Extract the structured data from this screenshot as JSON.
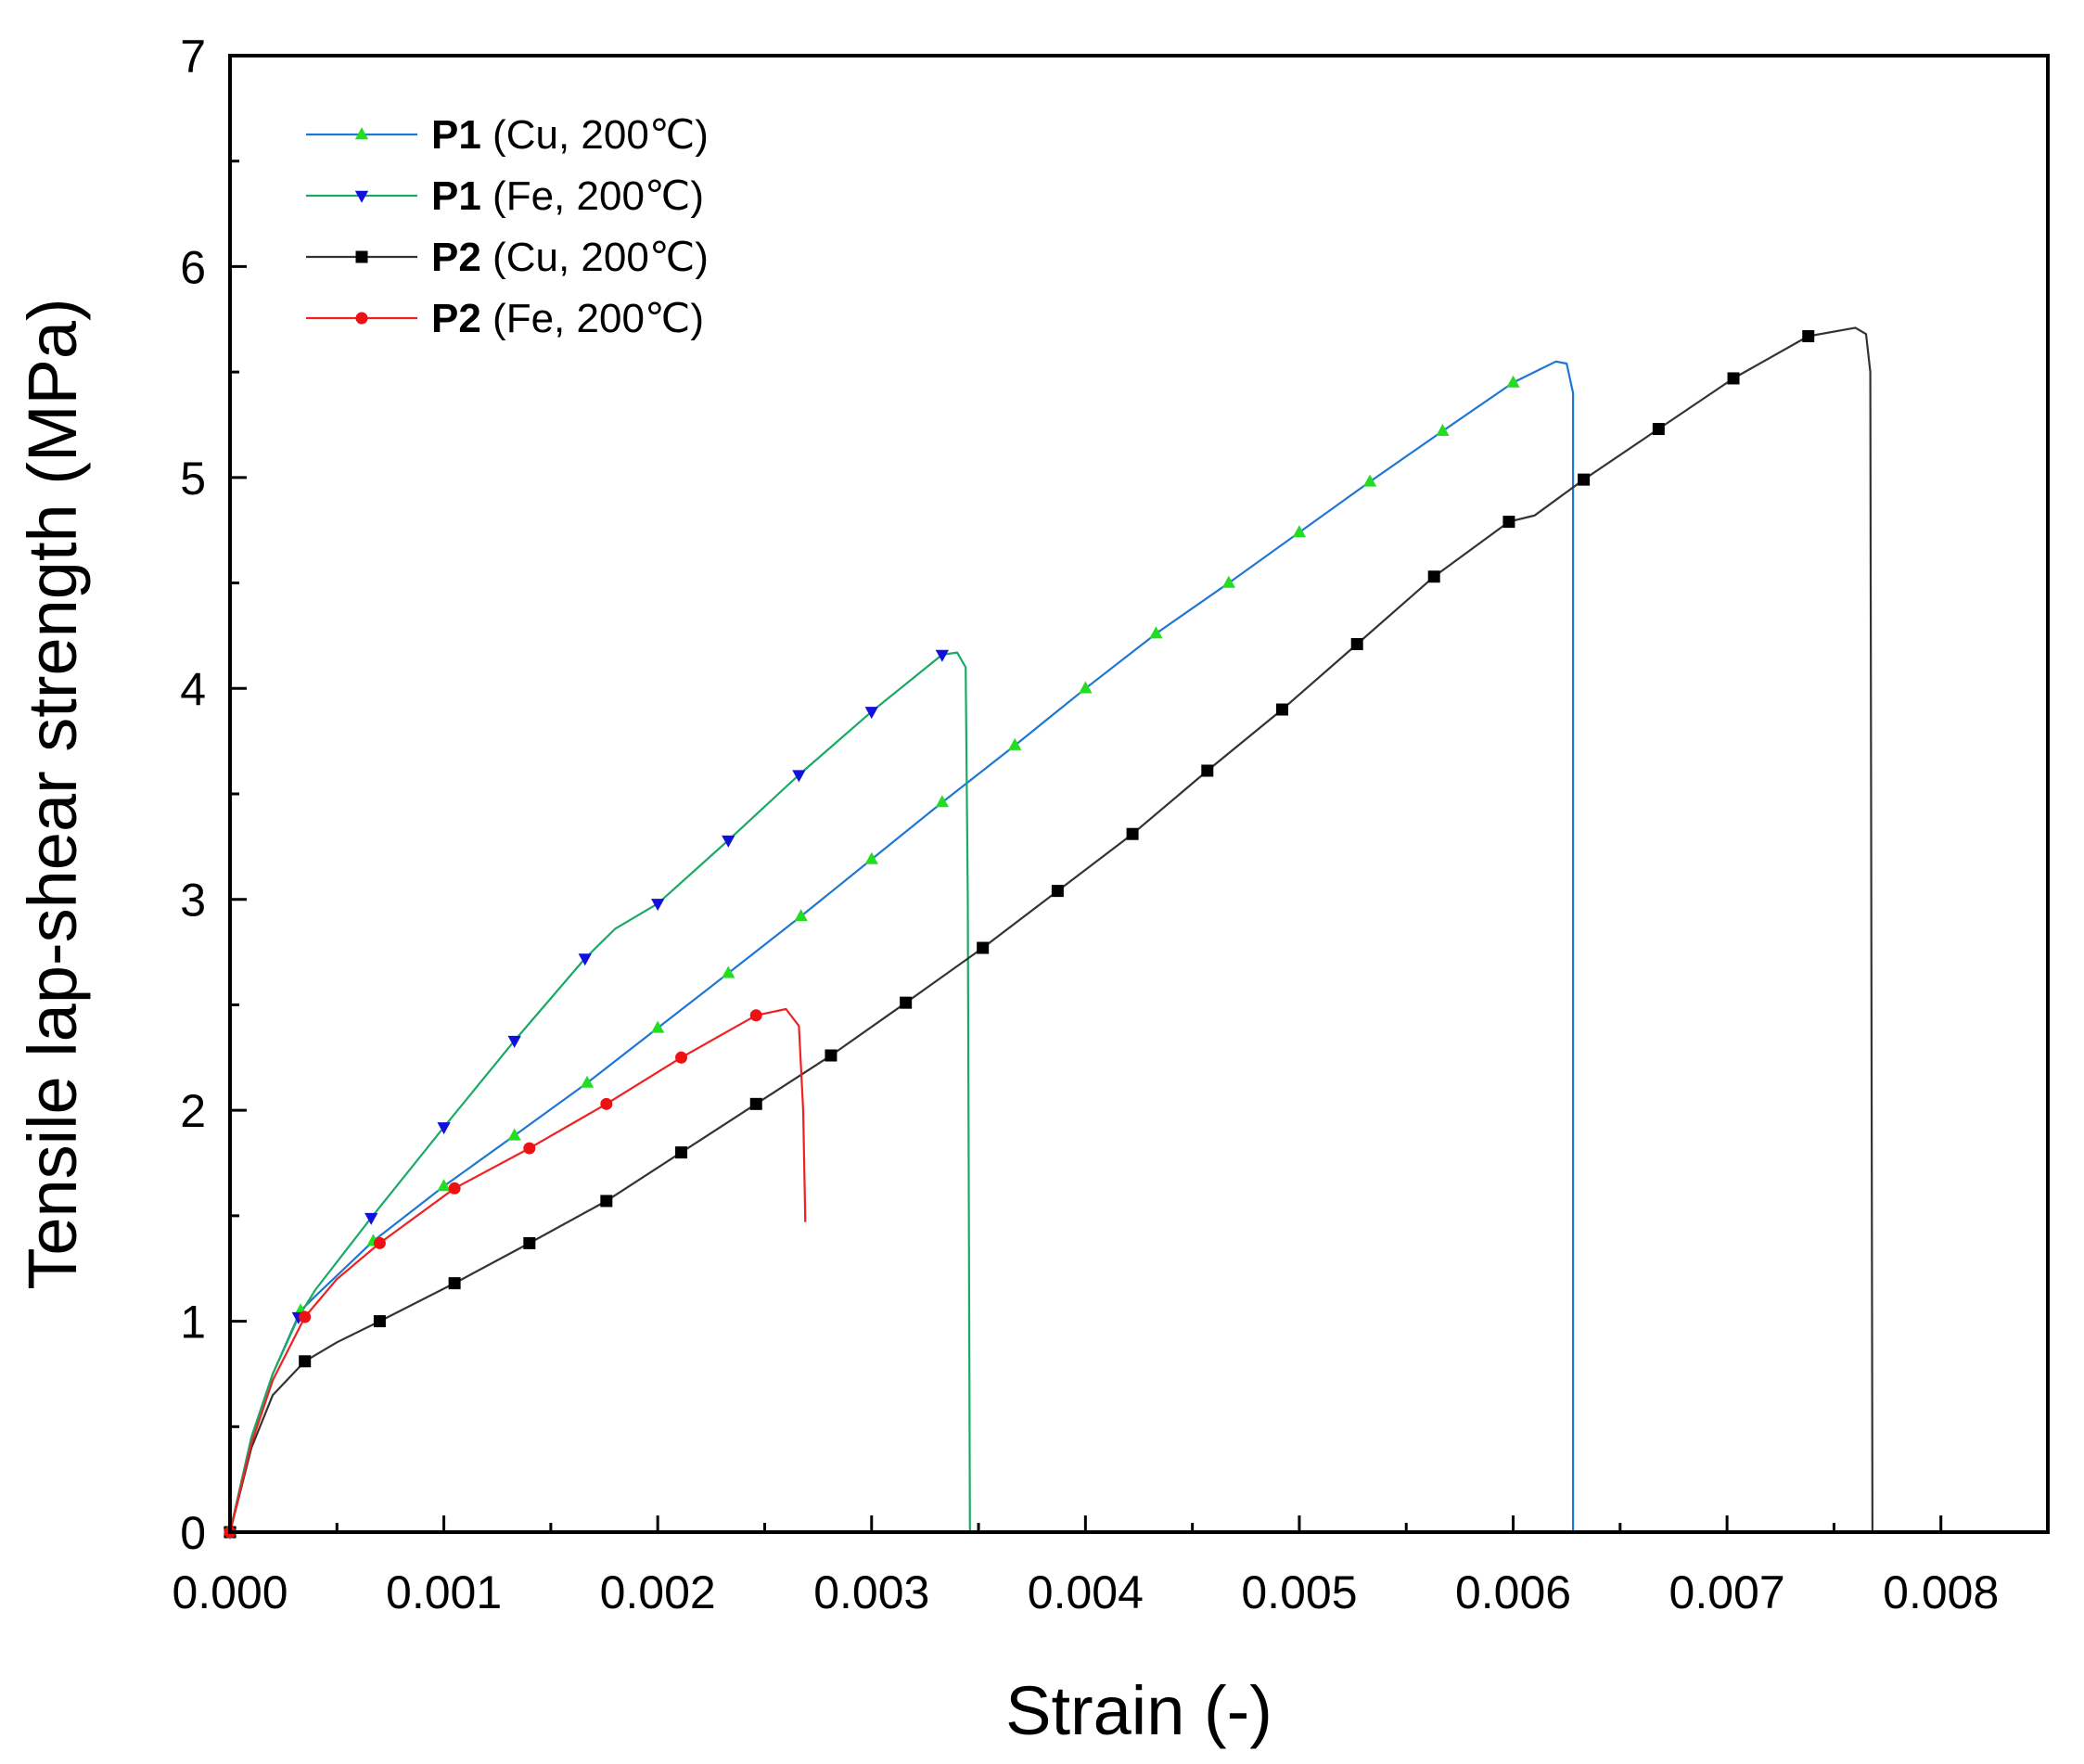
{
  "chart_data": {
    "type": "line",
    "xlabel": "Strain (-)",
    "ylabel": "Tensile lap-shear strength (MPa)",
    "xlim": [
      0,
      0.0085
    ],
    "ylim": [
      0,
      7
    ],
    "xticks": [
      "0.000",
      "0.001",
      "0.002",
      "0.003",
      "0.004",
      "0.005",
      "0.006",
      "0.007",
      "0.008"
    ],
    "yticks": [
      "0",
      "1",
      "2",
      "3",
      "4",
      "5",
      "6",
      "7"
    ],
    "grid": false,
    "legend_position": "top-left",
    "series": [
      {
        "name": "P1 (Cu, 200℃)",
        "label_bold": "P1",
        "label_rest": " (Cu, 200℃)",
        "color": "#1f77d4",
        "marker": "triangle-up",
        "marker_color": "#22dd22",
        "curve": [
          [
            0,
            0
          ],
          [
            0.0001,
            0.45
          ],
          [
            0.0002,
            0.75
          ],
          [
            0.00033,
            1.05
          ],
          [
            0.0004,
            1.12
          ],
          [
            0.00067,
            1.38
          ],
          [
            0.001,
            1.64
          ],
          [
            0.00133,
            1.88
          ],
          [
            0.00167,
            2.13
          ],
          [
            0.002,
            2.39
          ],
          [
            0.00233,
            2.65
          ],
          [
            0.00267,
            2.92
          ],
          [
            0.003,
            3.19
          ],
          [
            0.00333,
            3.46
          ],
          [
            0.00367,
            3.73
          ],
          [
            0.004,
            4.0
          ],
          [
            0.00433,
            4.26
          ],
          [
            0.00467,
            4.5
          ],
          [
            0.005,
            4.74
          ],
          [
            0.00533,
            4.98
          ],
          [
            0.00567,
            5.22
          ],
          [
            0.006,
            5.45
          ],
          [
            0.0062,
            5.55
          ],
          [
            0.00625,
            5.54
          ],
          [
            0.00628,
            5.4
          ],
          [
            0.00628,
            0
          ]
        ],
        "markers": [
          [
            0,
            0
          ],
          [
            0.00033,
            1.05
          ],
          [
            0.00067,
            1.38
          ],
          [
            0.001,
            1.64
          ],
          [
            0.00133,
            1.88
          ],
          [
            0.00167,
            2.13
          ],
          [
            0.002,
            2.39
          ],
          [
            0.00233,
            2.65
          ],
          [
            0.00267,
            2.92
          ],
          [
            0.003,
            3.19
          ],
          [
            0.00333,
            3.46
          ],
          [
            0.00367,
            3.73
          ],
          [
            0.004,
            4.0
          ],
          [
            0.00433,
            4.26
          ],
          [
            0.00467,
            4.5
          ],
          [
            0.005,
            4.74
          ],
          [
            0.00533,
            4.98
          ],
          [
            0.00567,
            5.22
          ],
          [
            0.006,
            5.45
          ]
        ]
      },
      {
        "name": "P1 (Fe, 200℃)",
        "label_bold": "P1",
        "label_rest": " (Fe, 200℃)",
        "color": "#1aaa66",
        "marker": "triangle-down",
        "marker_color": "#1111dd",
        "curve": [
          [
            0,
            0
          ],
          [
            0.0001,
            0.45
          ],
          [
            0.0002,
            0.75
          ],
          [
            0.00032,
            1.02
          ],
          [
            0.0004,
            1.15
          ],
          [
            0.00066,
            1.49
          ],
          [
            0.001,
            1.92
          ],
          [
            0.00133,
            2.33
          ],
          [
            0.00166,
            2.72
          ],
          [
            0.0018,
            2.86
          ],
          [
            0.002,
            2.98
          ],
          [
            0.00233,
            3.28
          ],
          [
            0.00266,
            3.59
          ],
          [
            0.003,
            3.89
          ],
          [
            0.00333,
            4.16
          ],
          [
            0.0034,
            4.17
          ],
          [
            0.00344,
            4.1
          ],
          [
            0.00345,
            3.0
          ],
          [
            0.00346,
            0
          ]
        ],
        "markers": [
          [
            0,
            0
          ],
          [
            0.00032,
            1.02
          ],
          [
            0.00066,
            1.49
          ],
          [
            0.001,
            1.92
          ],
          [
            0.00133,
            2.33
          ],
          [
            0.00166,
            2.72
          ],
          [
            0.002,
            2.98
          ],
          [
            0.00233,
            3.28
          ],
          [
            0.00266,
            3.59
          ],
          [
            0.003,
            3.89
          ],
          [
            0.00333,
            4.16
          ]
        ]
      },
      {
        "name": "P2 (Cu, 200℃)",
        "label_bold": "P2",
        "label_rest": " (Cu, 200℃)",
        "color": "#333333",
        "marker": "square",
        "marker_color": "#000000",
        "curve": [
          [
            0,
            0
          ],
          [
            0.0001,
            0.4
          ],
          [
            0.0002,
            0.65
          ],
          [
            0.00035,
            0.81
          ],
          [
            0.0005,
            0.9
          ],
          [
            0.0007,
            1.0
          ],
          [
            0.00105,
            1.18
          ],
          [
            0.0014,
            1.37
          ],
          [
            0.00176,
            1.57
          ],
          [
            0.00211,
            1.8
          ],
          [
            0.00246,
            2.03
          ],
          [
            0.00281,
            2.26
          ],
          [
            0.00316,
            2.51
          ],
          [
            0.00352,
            2.77
          ],
          [
            0.00387,
            3.04
          ],
          [
            0.00422,
            3.31
          ],
          [
            0.00457,
            3.61
          ],
          [
            0.00492,
            3.9
          ],
          [
            0.00527,
            4.21
          ],
          [
            0.00563,
            4.53
          ],
          [
            0.00598,
            4.79
          ],
          [
            0.0061,
            4.82
          ],
          [
            0.00633,
            4.99
          ],
          [
            0.00668,
            5.23
          ],
          [
            0.00703,
            5.47
          ],
          [
            0.00738,
            5.67
          ],
          [
            0.0076,
            5.71
          ],
          [
            0.00765,
            5.68
          ],
          [
            0.00767,
            5.5
          ],
          [
            0.00768,
            0
          ]
        ],
        "markers": [
          [
            0,
            0
          ],
          [
            0.00035,
            0.81
          ],
          [
            0.0007,
            1.0
          ],
          [
            0.00105,
            1.18
          ],
          [
            0.0014,
            1.37
          ],
          [
            0.00176,
            1.57
          ],
          [
            0.00211,
            1.8
          ],
          [
            0.00246,
            2.03
          ],
          [
            0.00281,
            2.26
          ],
          [
            0.00316,
            2.51
          ],
          [
            0.00352,
            2.77
          ],
          [
            0.00387,
            3.04
          ],
          [
            0.00422,
            3.31
          ],
          [
            0.00457,
            3.61
          ],
          [
            0.00492,
            3.9
          ],
          [
            0.00527,
            4.21
          ],
          [
            0.00563,
            4.53
          ],
          [
            0.00598,
            4.79
          ],
          [
            0.00633,
            4.99
          ],
          [
            0.00668,
            5.23
          ],
          [
            0.00703,
            5.47
          ],
          [
            0.00738,
            5.67
          ]
        ]
      },
      {
        "name": "P2 (Fe, 200℃)",
        "label_bold": "P2",
        "label_rest": " (Fe, 200℃)",
        "color": "#ee2222",
        "marker": "circle",
        "marker_color": "#ee1111",
        "curve": [
          [
            0,
            0
          ],
          [
            0.0001,
            0.42
          ],
          [
            0.0002,
            0.72
          ],
          [
            0.00035,
            1.02
          ],
          [
            0.0005,
            1.2
          ],
          [
            0.0007,
            1.37
          ],
          [
            0.00105,
            1.63
          ],
          [
            0.0014,
            1.82
          ],
          [
            0.00176,
            2.03
          ],
          [
            0.00211,
            2.25
          ],
          [
            0.00246,
            2.45
          ],
          [
            0.0026,
            2.48
          ],
          [
            0.00266,
            2.4
          ],
          [
            0.00268,
            2.0
          ],
          [
            0.00269,
            1.47
          ]
        ],
        "markers": [
          [
            0,
            0
          ],
          [
            0.00035,
            1.02
          ],
          [
            0.0007,
            1.37
          ],
          [
            0.00105,
            1.63
          ],
          [
            0.0014,
            1.82
          ],
          [
            0.00176,
            2.03
          ],
          [
            0.00211,
            2.25
          ],
          [
            0.00246,
            2.45
          ]
        ]
      }
    ]
  }
}
